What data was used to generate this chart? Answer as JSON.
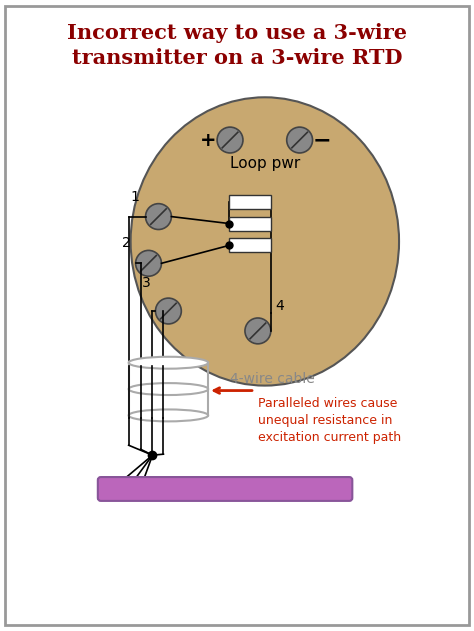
{
  "title_line1": "Incorrect way to use a 3-wire",
  "title_line2": "transmitter on a 3-wire RTD",
  "title_color": "#8B0000",
  "bg_color": "#ffffff",
  "panel_bg": "#ffffff",
  "oval_color": "#C8A870",
  "oval_edge": "#555555",
  "terminal_color": "#888888",
  "terminal_edge": "#444444",
  "loop_pwr_label": "Loop pwr",
  "wire_cable_label": "4-wire cable",
  "arrow_label": "Paralleled wires cause\nunequal resistance in\nexcitation current path",
  "annotation_color": "#CC2200",
  "cable_color": "#aaaaaa",
  "purple_bar": "#BB66BB",
  "border_color": "#999999"
}
